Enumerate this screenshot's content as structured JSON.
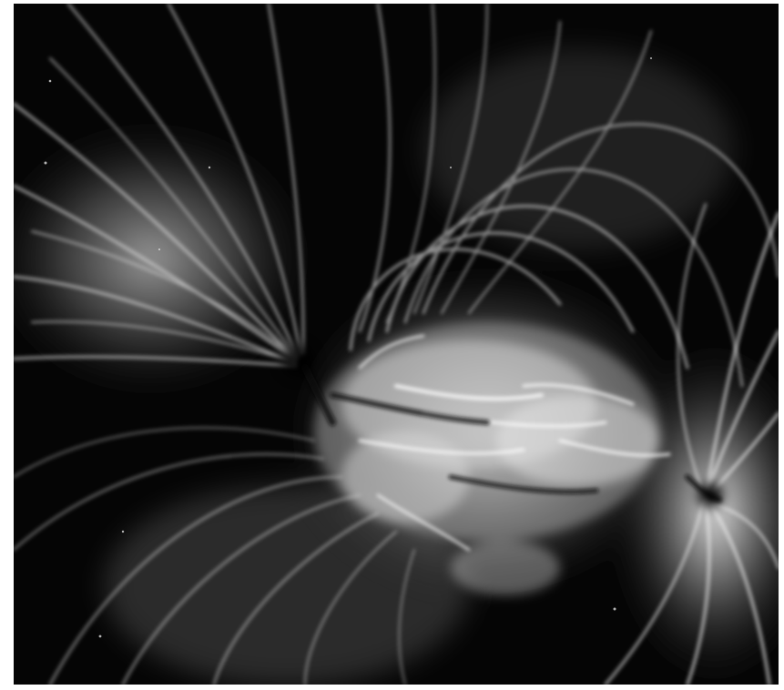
{
  "image": {
    "subject": "coronal-loops",
    "palette": {
      "background": "#050505",
      "loop": "#d8d8d8",
      "core": "#ffffff",
      "shadow": "#000000"
    }
  }
}
